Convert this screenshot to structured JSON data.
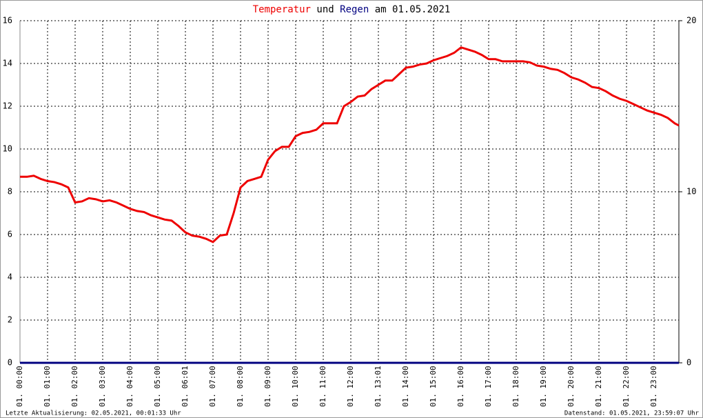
{
  "chart_data": {
    "type": "line",
    "title_words": [
      "und",
      "am 01.05.2021"
    ],
    "footer_left": "Letzte Aktualisierung: 02.05.2021, 00:01:33 Uhr",
    "footer_right": "Datenstand: 01.05.2021, 23:59:07 Uhr",
    "xlim": [
      0,
      23.9
    ],
    "xticks": [
      {
        "value": 0,
        "label": "01. 00:00"
      },
      {
        "value": 1,
        "label": "01. 01:00"
      },
      {
        "value": 2,
        "label": "01. 02:00"
      },
      {
        "value": 3,
        "label": "01. 03:00"
      },
      {
        "value": 4,
        "label": "01. 04:00"
      },
      {
        "value": 5,
        "label": "01. 05:00"
      },
      {
        "value": 6,
        "label": "01. 06:01"
      },
      {
        "value": 7,
        "label": "01. 07:00"
      },
      {
        "value": 8,
        "label": "01. 08:00"
      },
      {
        "value": 9,
        "label": "01. 09:00"
      },
      {
        "value": 10,
        "label": "01. 10:00"
      },
      {
        "value": 11,
        "label": "01. 11:00"
      },
      {
        "value": 12,
        "label": "01. 12:00"
      },
      {
        "value": 13,
        "label": "01. 13:01"
      },
      {
        "value": 14,
        "label": "01. 14:00"
      },
      {
        "value": 15,
        "label": "01. 15:00"
      },
      {
        "value": 16,
        "label": "01. 16:00"
      },
      {
        "value": 17,
        "label": "01. 17:00"
      },
      {
        "value": 18,
        "label": "01. 18:00"
      },
      {
        "value": 19,
        "label": "01. 19:00"
      },
      {
        "value": 20,
        "label": "01. 20:00"
      },
      {
        "value": 21,
        "label": "01. 21:00"
      },
      {
        "value": 22,
        "label": "01. 22:00"
      },
      {
        "value": 23,
        "label": "01. 23:00"
      }
    ],
    "ylim": [
      0,
      16
    ],
    "yticks": [
      0,
      2,
      4,
      6,
      8,
      10,
      12,
      14,
      16
    ],
    "y2lim": [
      0,
      20
    ],
    "y2ticks": [
      0,
      10,
      20
    ],
    "grid": true,
    "series": [
      {
        "name": "Temperatur",
        "color": "#ee0000",
        "x": [
          0,
          0.25,
          0.5,
          0.75,
          1,
          1.25,
          1.5,
          1.75,
          2,
          2.25,
          2.5,
          2.75,
          3,
          3.25,
          3.5,
          3.75,
          4,
          4.25,
          4.5,
          4.75,
          5,
          5.25,
          5.5,
          5.75,
          6,
          6.25,
          6.5,
          6.75,
          7,
          7.25,
          7.5,
          7.75,
          8,
          8.25,
          8.5,
          8.75,
          9,
          9.25,
          9.5,
          9.75,
          10,
          10.25,
          10.5,
          10.75,
          11,
          11.25,
          11.5,
          11.75,
          12,
          12.25,
          12.5,
          12.75,
          13,
          13.25,
          13.5,
          13.75,
          14,
          14.25,
          14.5,
          14.75,
          15,
          15.25,
          15.5,
          15.75,
          16,
          16.25,
          16.5,
          16.75,
          17,
          17.25,
          17.5,
          17.75,
          18,
          18.25,
          18.5,
          18.75,
          19,
          19.25,
          19.5,
          19.75,
          20,
          20.25,
          20.5,
          20.75,
          21,
          21.25,
          21.5,
          21.75,
          22,
          22.25,
          22.5,
          22.75,
          23,
          23.25,
          23.5,
          23.75,
          23.9
        ],
        "values": [
          8.7,
          8.7,
          8.75,
          8.6,
          8.5,
          8.45,
          8.35,
          8.2,
          7.5,
          7.55,
          7.7,
          7.65,
          7.55,
          7.6,
          7.5,
          7.35,
          7.2,
          7.1,
          7.05,
          6.9,
          6.8,
          6.7,
          6.65,
          6.4,
          6.1,
          5.95,
          5.9,
          5.8,
          5.65,
          5.95,
          6.0,
          7.0,
          8.2,
          8.5,
          8.6,
          8.7,
          9.5,
          9.9,
          10.1,
          10.1,
          10.6,
          10.75,
          10.8,
          10.9,
          11.2,
          11.2,
          11.2,
          12.0,
          12.2,
          12.45,
          12.5,
          12.8,
          13.0,
          13.2,
          13.2,
          13.5,
          13.8,
          13.85,
          13.95,
          14.0,
          14.15,
          14.25,
          14.35,
          14.5,
          14.75,
          14.65,
          14.55,
          14.4,
          14.2,
          14.2,
          14.1,
          14.1,
          14.1,
          14.1,
          14.05,
          13.9,
          13.85,
          13.75,
          13.7,
          13.55,
          13.35,
          13.25,
          13.1,
          12.9,
          12.85,
          12.7,
          12.5,
          12.35,
          12.25,
          12.1,
          11.95,
          11.8,
          11.7,
          11.6,
          11.45,
          11.2,
          11.1
        ]
      },
      {
        "name": "Regen",
        "color": "#000080",
        "axis": "y2",
        "x": [
          0,
          23.9
        ],
        "values": [
          0,
          0
        ]
      }
    ]
  }
}
